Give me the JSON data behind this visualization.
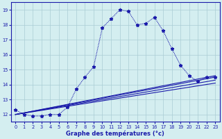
{
  "xlabel": "Graphe des températures (°c)",
  "bg_color": "#d4eef0",
  "grid_color": "#aaccd4",
  "line_color": "#1a1aaa",
  "xlim": [
    -0.5,
    23.5
  ],
  "ylim": [
    11.5,
    19.5
  ],
  "yticks": [
    12,
    13,
    14,
    15,
    16,
    17,
    18,
    19
  ],
  "xticks": [
    0,
    1,
    2,
    3,
    4,
    5,
    6,
    7,
    8,
    9,
    10,
    11,
    12,
    13,
    14,
    15,
    16,
    17,
    18,
    19,
    20,
    21,
    22,
    23
  ],
  "main_series": {
    "x": [
      0,
      1,
      2,
      3,
      4,
      5,
      6,
      7,
      8,
      9,
      10,
      11,
      12,
      13,
      14,
      15,
      16,
      17,
      18,
      19,
      20,
      21,
      22,
      23
    ],
    "y": [
      12.3,
      12.0,
      11.9,
      11.9,
      12.0,
      12.0,
      12.5,
      13.7,
      14.5,
      15.2,
      17.8,
      18.4,
      19.0,
      18.9,
      18.0,
      18.1,
      18.5,
      17.6,
      16.4,
      15.3,
      14.6,
      14.2,
      14.5,
      14.5
    ]
  },
  "trend_lines": [
    {
      "x": [
        0,
        23
      ],
      "y": [
        12.0,
        14.3
      ]
    },
    {
      "x": [
        0,
        23
      ],
      "y": [
        12.0,
        14.5
      ]
    },
    {
      "x": [
        0,
        23
      ],
      "y": [
        12.0,
        14.1
      ]
    },
    {
      "x": [
        0,
        23
      ],
      "y": [
        12.0,
        14.6
      ]
    }
  ]
}
